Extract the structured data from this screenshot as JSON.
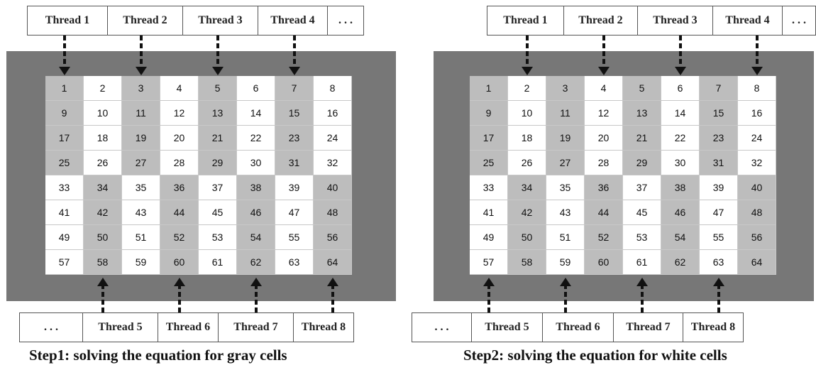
{
  "step1": {
    "top_threads": [
      "Thread 1",
      "Thread 2",
      "Thread 3",
      "Thread 4",
      ". . ."
    ],
    "bottom_threads": [
      ". . .",
      "Thread 5",
      "Thread 6",
      "Thread 7",
      "Thread 8"
    ],
    "caption": "Step1: solving the equation for  gray cells"
  },
  "step2": {
    "top_threads": [
      "Thread 1",
      "Thread 2",
      "Thread 3",
      "Thread 4",
      ". . ."
    ],
    "bottom_threads": [
      ". . .",
      "Thread 5",
      "Thread 6",
      "Thread 7",
      "Thread 8"
    ],
    "caption": "Step2: solving the equation for white cells"
  },
  "grid": {
    "rows": 8,
    "cols": 8,
    "cells": [
      "1",
      "2",
      "3",
      "4",
      "5",
      "6",
      "7",
      "8",
      "9",
      "10",
      "11",
      "12",
      "13",
      "14",
      "15",
      "16",
      "17",
      "18",
      "19",
      "20",
      "21",
      "22",
      "23",
      "24",
      "25",
      "26",
      "27",
      "28",
      "29",
      "30",
      "31",
      "32",
      "33",
      "34",
      "35",
      "36",
      "37",
      "38",
      "39",
      "40",
      "41",
      "42",
      "43",
      "44",
      "45",
      "46",
      "47",
      "48",
      "49",
      "50",
      "51",
      "52",
      "53",
      "54",
      "55",
      "56",
      "57",
      "58",
      "59",
      "60",
      "61",
      "62",
      "63",
      "64"
    ]
  },
  "colors": {
    "frame": "#777777",
    "gray_cell": "#bdbdbd",
    "white_cell": "#ffffff",
    "arrow": "#111111"
  }
}
